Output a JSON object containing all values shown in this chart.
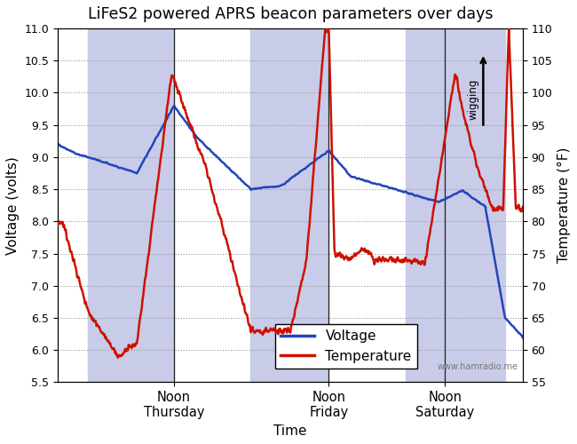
{
  "title": "LiFeS2 powered APRS beacon parameters over days",
  "xlabel": "Time",
  "ylabel_left": "Voltage (volts)",
  "ylabel_right": "Temperature (°F)",
  "ylim_left": [
    5.5,
    11.0
  ],
  "ylim_right": [
    55,
    110
  ],
  "yticks_left": [
    5.5,
    6.0,
    6.5,
    7.0,
    7.5,
    8.0,
    8.5,
    9.0,
    9.5,
    10.0,
    10.5,
    11.0
  ],
  "yticks_right": [
    55,
    60,
    65,
    70,
    75,
    80,
    85,
    90,
    95,
    100,
    105,
    110
  ],
  "shaded_color": "#c8cce8",
  "background_color": "#ffffff",
  "voltage_color": "#2244bb",
  "temperature_color": "#cc1100",
  "grid_color": "#999999",
  "annotation_text": "wigging",
  "watermark": "www.hamradio.me",
  "legend_voltage": "Voltage",
  "legend_temperature": "Temperature",
  "figsize": [
    6.5,
    5.0
  ],
  "dpi": 100
}
